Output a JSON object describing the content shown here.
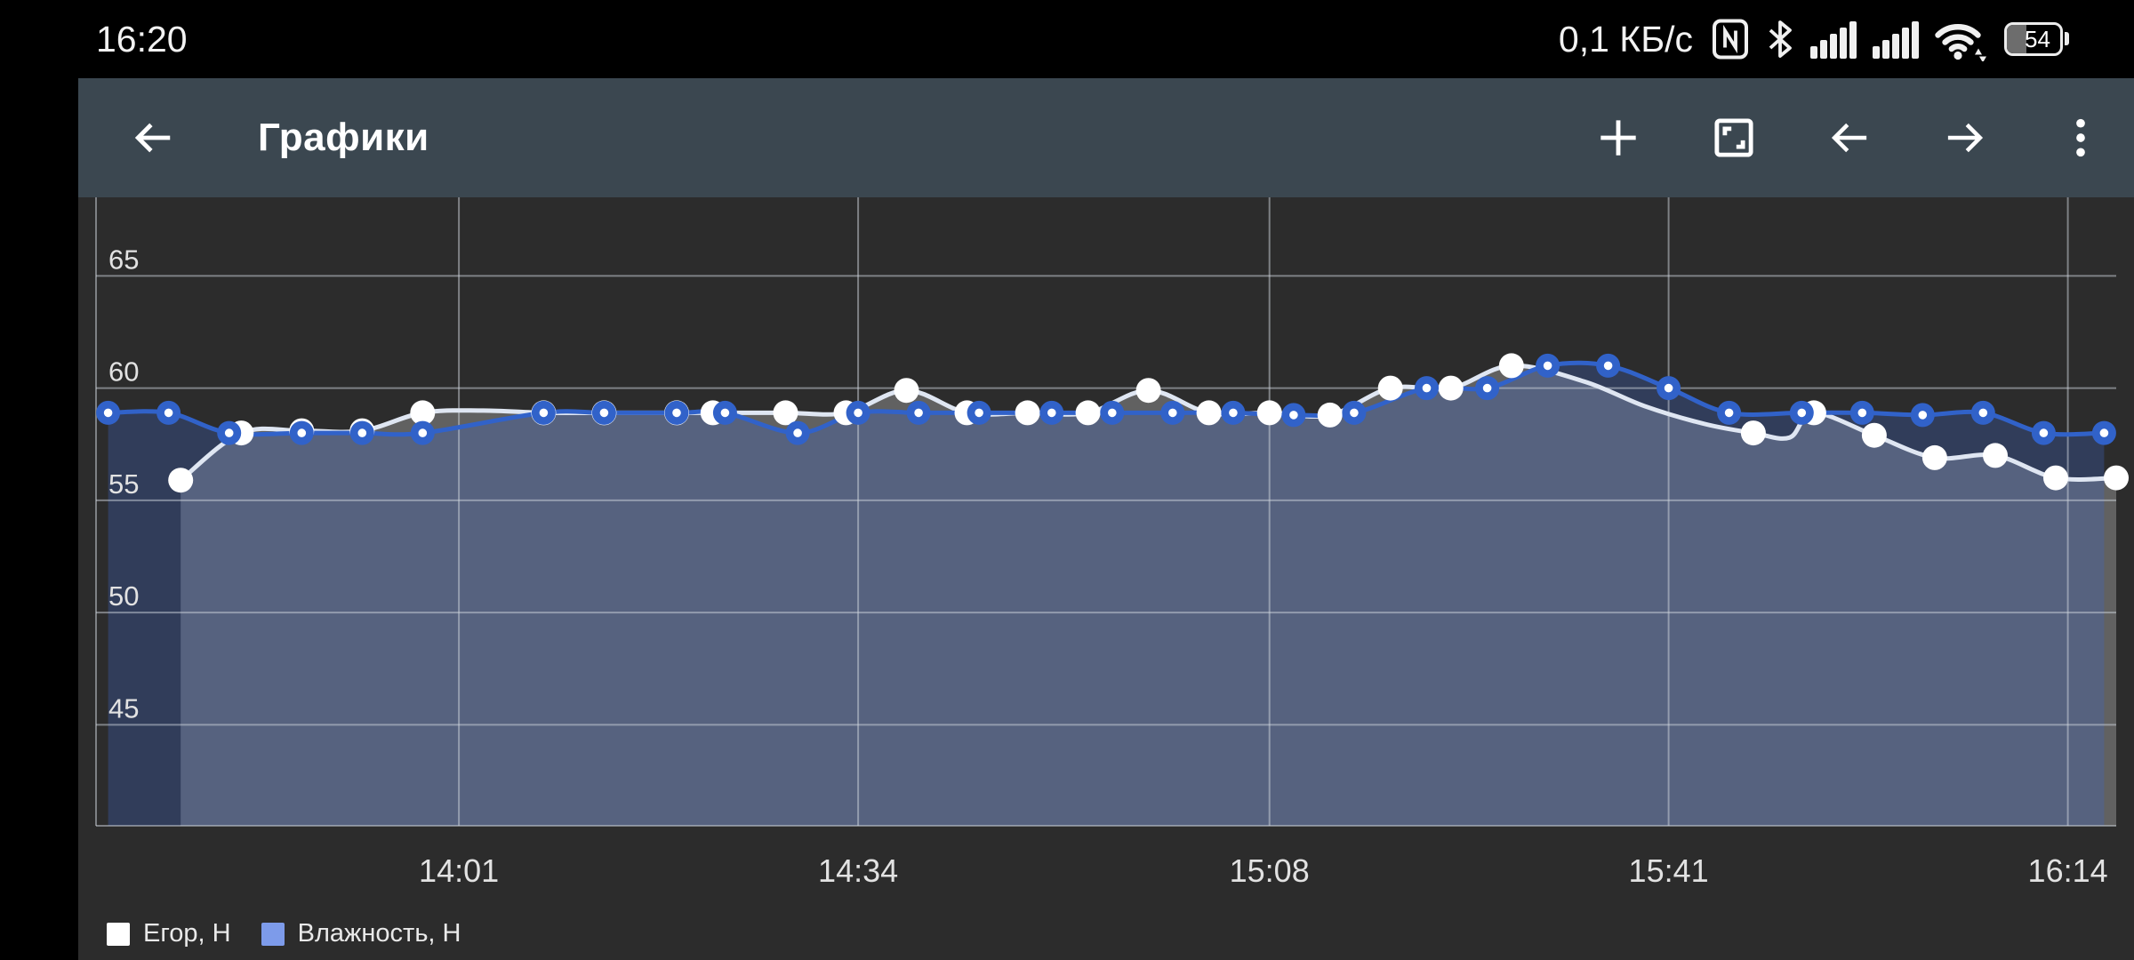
{
  "status_bar": {
    "time": "16:20",
    "network_speed": "0,1 КБ/с",
    "battery_percent": "54",
    "icons": [
      "nfc-icon",
      "bluetooth-icon",
      "cellular-signal-icon",
      "cellular-signal-icon-2",
      "wifi-icon",
      "battery-icon"
    ]
  },
  "app_bar": {
    "title": "Графики",
    "actions": [
      "back",
      "add",
      "fit-screen",
      "previous",
      "next",
      "overflow-menu"
    ]
  },
  "chart_data": {
    "type": "line",
    "title": "",
    "xlabel": "",
    "ylabel": "",
    "x_ticks": [
      "14:01",
      "14:34",
      "15:08",
      "15:41",
      "16:14"
    ],
    "y_ticks": [
      65,
      60,
      55,
      50,
      45
    ],
    "x_domain": [
      "13:31",
      "16:18"
    ],
    "y_domain": [
      40.5,
      68.5
    ],
    "grid": true,
    "legend_position": "bottom-left",
    "background": "#2c2c2c",
    "grid_color": "rgba(208,213,221,0.5)",
    "axis_label_color": "#e2e2e2",
    "series": [
      {
        "name": "Егор, Н",
        "legend_color": "#ffffff",
        "line_color": "#dfe6f2",
        "marker_color": "#ffffff",
        "marker_radius": 14,
        "fill_color": "rgba(255,255,255,0.25)",
        "points": [
          [
            "13:38",
            55.9
          ],
          [
            "13:43",
            58.0
          ],
          [
            "13:48",
            58.1
          ],
          [
            "13:53",
            58.1
          ],
          [
            "13:58",
            58.9
          ],
          [
            "14:03",
            59.0,
            0
          ],
          [
            "14:08",
            58.9
          ],
          [
            "14:13",
            58.9
          ],
          [
            "14:19",
            58.9
          ],
          [
            "14:22",
            58.9
          ],
          [
            "14:28",
            58.9
          ],
          [
            "14:33",
            58.9
          ],
          [
            "14:38",
            59.9
          ],
          [
            "14:43",
            58.9
          ],
          [
            "14:48",
            58.9
          ],
          [
            "14:53",
            58.9
          ],
          [
            "14:58",
            59.9
          ],
          [
            "15:03",
            58.9
          ],
          [
            "15:08",
            58.9
          ],
          [
            "15:13",
            58.8
          ],
          [
            "15:18",
            60.0
          ],
          [
            "15:23",
            60.0
          ],
          [
            "15:28",
            61.0
          ],
          [
            "15:34",
            60.3,
            0
          ],
          [
            "15:39",
            59.2,
            0
          ],
          [
            "15:44",
            58.4,
            0
          ],
          [
            "15:48",
            58.0
          ],
          [
            "15:51",
            57.8,
            0
          ],
          [
            "15:53",
            58.9
          ],
          [
            "15:58",
            57.9
          ],
          [
            "16:03",
            56.9
          ],
          [
            "16:08",
            57.0
          ],
          [
            "16:13",
            56.0
          ],
          [
            "16:18",
            56.0
          ]
        ]
      },
      {
        "name": "Влажность, Н",
        "legend_color": "#7d9bea",
        "line_color": "#3162c9",
        "marker_color": "#3162c9",
        "marker_center": "#ffffff",
        "marker_radius": 13.5,
        "fill_color": "rgba(62,102,198,0.30)",
        "points": [
          [
            "13:32",
            58.9
          ],
          [
            "13:37",
            58.9
          ],
          [
            "13:42",
            58.0
          ],
          [
            "13:48",
            58.0
          ],
          [
            "13:53",
            58.0
          ],
          [
            "13:58",
            58.0
          ],
          [
            "14:08",
            58.9
          ],
          [
            "14:13",
            58.9
          ],
          [
            "14:19",
            58.9
          ],
          [
            "14:23",
            58.9
          ],
          [
            "14:29",
            58.0
          ],
          [
            "14:34",
            58.9
          ],
          [
            "14:39",
            58.9
          ],
          [
            "14:44",
            58.9
          ],
          [
            "14:50",
            58.9
          ],
          [
            "14:55",
            58.9
          ],
          [
            "15:00",
            58.9
          ],
          [
            "15:05",
            58.9
          ],
          [
            "15:10",
            58.8
          ],
          [
            "15:15",
            58.9
          ],
          [
            "15:21",
            60.0
          ],
          [
            "15:26",
            60.0
          ],
          [
            "15:31",
            61.0
          ],
          [
            "15:36",
            61.0
          ],
          [
            "15:41",
            60.0
          ],
          [
            "15:46",
            58.9
          ],
          [
            "15:52",
            58.9
          ],
          [
            "15:57",
            58.9
          ],
          [
            "16:02",
            58.8
          ],
          [
            "16:07",
            58.9
          ],
          [
            "16:12",
            58.0
          ],
          [
            "16:17",
            58.0
          ]
        ]
      }
    ]
  }
}
